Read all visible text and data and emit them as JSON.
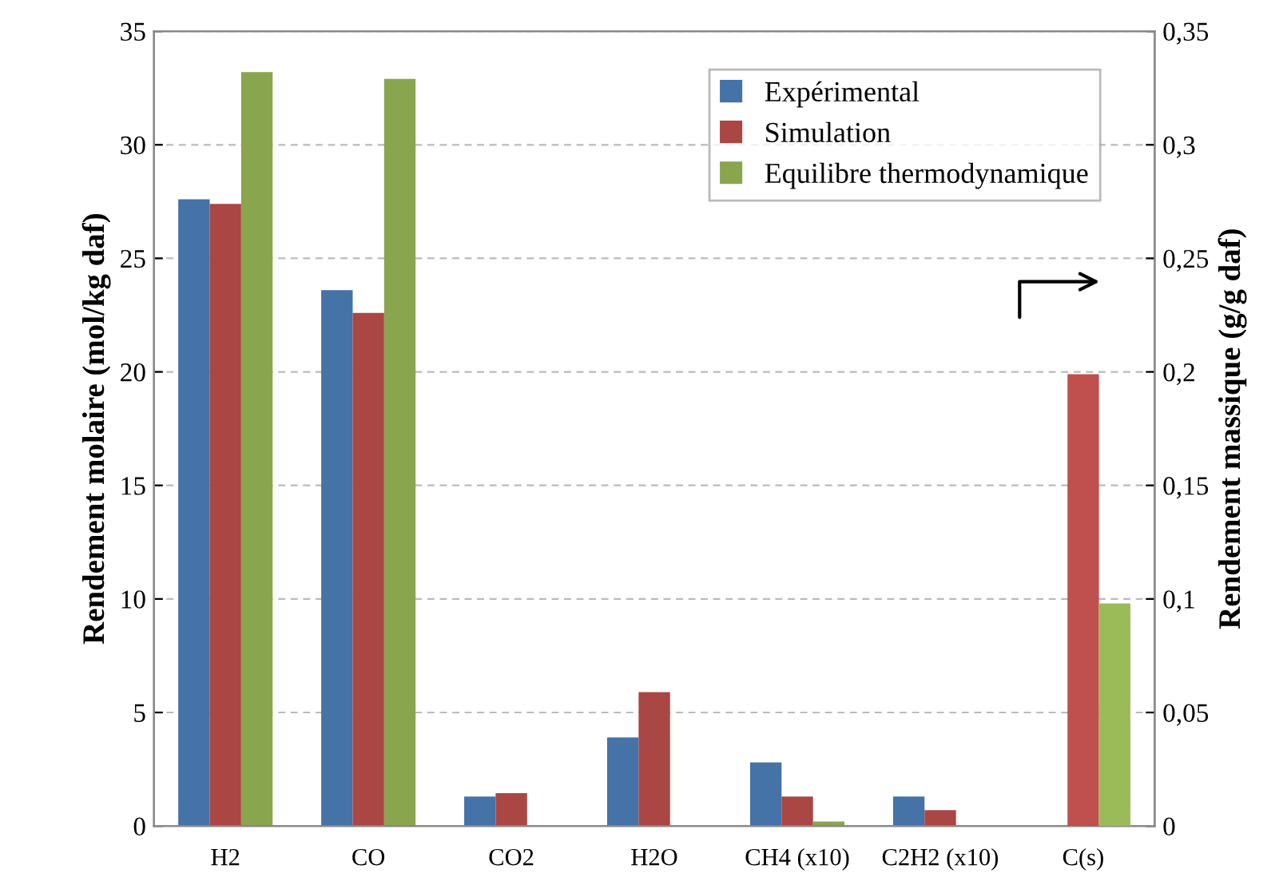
{
  "chart_data": {
    "type": "bar",
    "categories": [
      "H2",
      "CO",
      "CO2",
      "H2O",
      "CH4 (x10)",
      "C2H2 (x10)",
      "C(s)"
    ],
    "series": [
      {
        "name": "Expérimental",
        "color": "#4572a7",
        "values": [
          27.6,
          23.6,
          1.3,
          3.9,
          2.8,
          1.3,
          null
        ]
      },
      {
        "name": "Simulation",
        "color": "#aa4643",
        "values": [
          27.4,
          22.6,
          1.45,
          5.9,
          1.3,
          0.7,
          null
        ]
      },
      {
        "name": "Equilibre thermodynamique",
        "color": "#89a54e",
        "values": [
          33.2,
          32.9,
          null,
          null,
          0.2,
          null,
          null
        ]
      },
      {
        "color": "#c0504d",
        "axis": "y2",
        "values": [
          null,
          null,
          null,
          null,
          null,
          null,
          0.199
        ]
      },
      {
        "color": "#9bbb59",
        "axis": "y2",
        "values": [
          null,
          null,
          null,
          null,
          null,
          null,
          0.098
        ]
      }
    ],
    "ylabel": "Rendement molaire (mol/kg daf)",
    "y2label": "Rendement massique (g/g daf)",
    "ylim": [
      0,
      35
    ],
    "yticks": [
      0,
      5,
      10,
      15,
      20,
      25,
      30,
      35
    ],
    "y2lim": [
      0,
      0.35
    ],
    "y2ticks": [
      0,
      {
        "value": 0.05,
        "label": "0,05"
      },
      {
        "value": 0.1,
        "label": "0,1"
      },
      {
        "value": 0.15,
        "label": "0,15"
      },
      {
        "value": 0.2,
        "label": "0,2"
      },
      {
        "value": 0.25,
        "label": "0,25"
      },
      {
        "value": 0.3,
        "label": "0,3"
      },
      {
        "value": 0.35,
        "label": "0,35"
      }
    ],
    "grid": "y",
    "legend": "top right"
  }
}
